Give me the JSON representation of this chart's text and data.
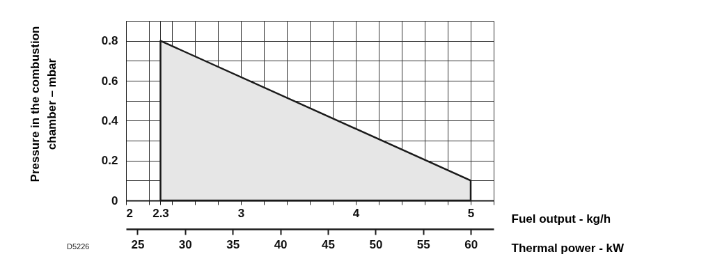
{
  "chart_data": {
    "type": "area",
    "ylabel": "Pressure in the combustion\nchamber – mbar",
    "xlabel": "Fuel output - kg/h",
    "x2label": "Thermal power - kW",
    "x": [
      2.3,
      5
    ],
    "series": [
      {
        "color": "#e6e6e6",
        "values": [
          0.8,
          0.1
        ]
      }
    ],
    "xlim": [
      2,
      5.2
    ],
    "xticks": [
      2,
      {
        "value": 2.2,
        "label": null
      },
      2.3,
      {
        "value": 2.4,
        "label": null
      },
      {
        "value": 2.6,
        "label": null
      },
      {
        "value": 2.8,
        "label": null
      },
      3,
      {
        "value": 3.2,
        "label": null
      },
      {
        "value": 3.4,
        "label": null
      },
      {
        "value": 3.6,
        "label": null
      },
      {
        "value": 3.8,
        "label": null
      },
      4,
      {
        "value": 4.2,
        "label": null
      },
      {
        "value": 4.4,
        "label": null
      },
      {
        "value": 4.6,
        "label": null
      },
      {
        "value": 4.8,
        "label": null
      },
      5,
      {
        "value": 5.2,
        "label": null
      }
    ],
    "x2lim": [
      23.8,
      62.4
    ],
    "x2ticks": [
      25,
      30,
      35,
      40,
      45,
      50,
      55,
      60
    ],
    "ylim": [
      0,
      0.9
    ],
    "yticks": [
      0,
      {
        "value": 0.1,
        "label": null
      },
      0.2,
      {
        "value": 0.3,
        "label": null
      },
      0.4,
      {
        "value": 0.5,
        "label": null
      },
      0.6,
      {
        "value": 0.7,
        "label": null
      },
      0.8,
      {
        "value": 0.9,
        "label": null
      }
    ],
    "grid": true,
    "annotations": [
      "D5226"
    ]
  }
}
